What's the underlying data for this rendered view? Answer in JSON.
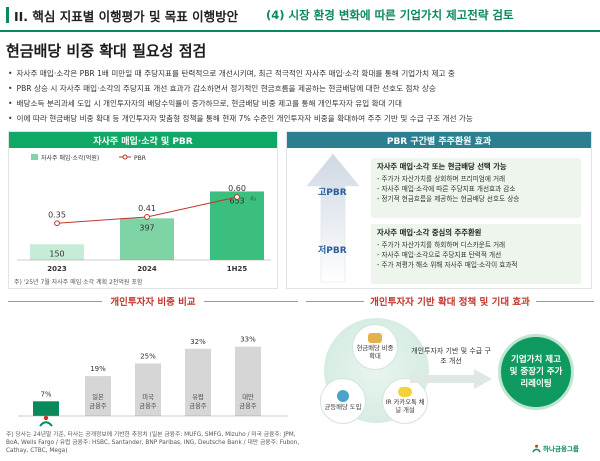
{
  "header": {
    "title": "II. 핵심 지표별 이행평가 및 목표 이행방안",
    "subtitle": "(4) 시장 환경 변화에 따른 기업가치 제고전략 검토"
  },
  "main_title": "현금배당 비중 확대 필요성 점검",
  "bullets": [
    "자사주 매입·소각은 PBR 1배 미만일 때 주당지표를 탄력적으로 개선시키며, 최근 적극적인 자사주 매입·소각 확대를 통해 기업가치 제고 중",
    "PBR 상승 시 자사주 매입·소각의 주당지표 개선 효과가 감소하면서 정기적인 현금흐름을 제공하는 현금배당에 대한 선호도 점차 상승",
    "배당소득 분리과세 도입 시 개인투자자의 배당수익률이 증가하므로, 현금배당 비중 제고를 통해 개인투자자 유입 확대 기대",
    "이에 따라 현금배당 비중 확대 등 개인투자자 맞춤형 정책을 통해 현재 7% 수준인 개인투자자 비중을 확대하여 주주 기반 및 수급 구조 개선 가능"
  ],
  "left_panel": {
    "title": "자사주 매입·소각 및 PBR",
    "legend_bar": "자사주 매입·소각(억원)",
    "legend_line": "PBR",
    "note": "주) '25년 7월 자사주 매입·소각 계획 2천억원 포함"
  },
  "right_panel": {
    "title": "PBR 구간별 주주환원 효과",
    "high_label": "고PBR",
    "low_label": "저PBR",
    "box1": {
      "title": "자사주 매입·소각 또는 현금배당 선택 가능",
      "items": [
        "주가가 자산가치를 상회하며 프리미엄에 거래",
        "자사주 매입·소각에 따른 주당지표 개선효과 감소",
        "정기적 현금흐름을 제공하는 현금배당 선호도 상승"
      ]
    },
    "box2": {
      "title": "자사주 매입·소각 중심의 주주환원",
      "items": [
        "주가가 자산가치를 하회하며 디스카운트 거래",
        "자사주 매입·소각으로 주당지표 탄력적 개선",
        "주가 저평가 해소 위해 자사주 매입·소각이 효과적"
      ]
    }
  },
  "investor_section": {
    "title": "개인투자자 비중 비교",
    "note": "주) 당사는 24년말 기준, 타사는 공개정보에 기반한 추정치 (일본 금융주: MUFG, SMFG, Mizuho / 미국 금융주: JPM, BoA, Wells Fargo / 유럽 금융주: HSBC, Santander, BNP Paribas, ING, Deutsche Bank / 대만 금융주: Fubon, Cathay, CTBC, Mega)"
  },
  "policy_section": {
    "title": "개인투자자 기반 확대 정책 및 기대 효과",
    "node_top": "현금배당 비중 확대",
    "node_left": "균등배당 도입",
    "node_right": "IR 카카오톡 채널 개설",
    "arrow_text": "개인투자자 기반 및 수급 구조 개선",
    "result": "기업가치 제고 및 중장기 주가 리레이팅"
  },
  "logo_text": "하나금융그룹",
  "colors": {
    "brand": "#0a8a5a",
    "accent_red": "#c0352b",
    "bar_light": "#c6ebd6",
    "bar_mid": "#7fd4a5",
    "bar_dark": "#3bbf7e",
    "inv_bar": "#d6d6d6"
  },
  "chart_data": [
    {
      "type": "bar",
      "title": "자사주 매입·소각 및 PBR",
      "categories": [
        "2023",
        "2024",
        "1H25"
      ],
      "series": [
        {
          "name": "자사주 매입·소각(억원)",
          "type": "bar",
          "values": [
            150,
            397,
            653
          ],
          "labels": [
            "150",
            "397",
            "653"
          ]
        },
        {
          "name": "PBR",
          "type": "line",
          "values": [
            0.35,
            0.41,
            0.6
          ],
          "labels": [
            "0.35",
            "0.41",
            "0.60"
          ]
        }
      ],
      "footnote_marker": "주)",
      "ylim": [
        0,
        800
      ]
    },
    {
      "type": "bar",
      "title": "개인투자자 비중 비교",
      "categories": [
        "",
        "일본 금융주",
        "미국 금융주",
        "유럽 금융주",
        "대만 금융주"
      ],
      "values": [
        7,
        19,
        25,
        32,
        33
      ],
      "labels": [
        "7%",
        "19%",
        "25%",
        "32%",
        "33%"
      ],
      "ylim": [
        0,
        40
      ]
    }
  ]
}
